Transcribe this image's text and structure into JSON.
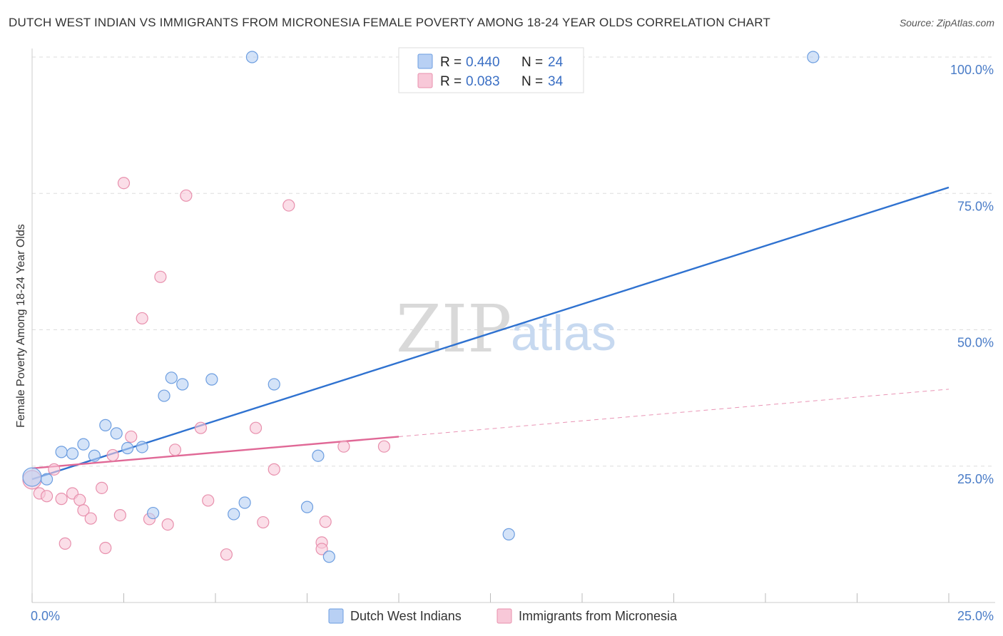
{
  "title": "DUTCH WEST INDIAN VS IMMIGRANTS FROM MICRONESIA FEMALE POVERTY AMONG 18-24 YEAR OLDS CORRELATION CHART",
  "source": "Source: ZipAtlas.com",
  "watermark": {
    "zip": "ZIP",
    "atlas": "atlas"
  },
  "legend": {
    "r_label": "R =",
    "n_label": "N =",
    "rows": [
      {
        "r": "0.440",
        "n": "24"
      },
      {
        "r": "0.083",
        "n": "34"
      }
    ]
  },
  "colors": {
    "blue_fill": "#b8d0f4",
    "blue_stroke": "#6d9ee0",
    "blue_line": "#2f72d0",
    "pink_fill": "#f8c8d8",
    "pink_stroke": "#e890ad",
    "pink_line": "#e06896",
    "tick_text": "#4a7cc7"
  },
  "chart_data": {
    "type": "scatter",
    "title": "DUTCH WEST INDIAN VS IMMIGRANTS FROM MICRONESIA FEMALE POVERTY AMONG 18-24 YEAR OLDS CORRELATION CHART",
    "xlabel": "",
    "ylabel": "Female Poverty Among 18-24 Year Olds",
    "xlim": [
      0,
      25
    ],
    "ylim": [
      0,
      100
    ],
    "x_tick_labels": [
      "0.0%",
      "25.0%"
    ],
    "y_tick_labels": [
      "25.0%",
      "50.0%",
      "75.0%",
      "100.0%"
    ],
    "y_tick_values": [
      25,
      50,
      75,
      100
    ],
    "grid": true,
    "legend_position": "bottom",
    "series": [
      {
        "name": "Dutch West Indians",
        "points": [
          [
            0.0,
            23.0
          ],
          [
            0.4,
            22.6
          ],
          [
            0.8,
            27.6
          ],
          [
            1.1,
            27.3
          ],
          [
            1.4,
            29.0
          ],
          [
            1.7,
            26.9
          ],
          [
            2.0,
            32.5
          ],
          [
            2.3,
            31.0
          ],
          [
            2.6,
            28.3
          ],
          [
            3.0,
            28.5
          ],
          [
            3.3,
            16.4
          ],
          [
            3.6,
            37.9
          ],
          [
            3.8,
            41.2
          ],
          [
            4.1,
            40.0
          ],
          [
            4.9,
            40.9
          ],
          [
            5.5,
            16.2
          ],
          [
            5.8,
            18.3
          ],
          [
            6.0,
            100.0
          ],
          [
            6.6,
            40.0
          ],
          [
            7.5,
            17.5
          ],
          [
            7.8,
            26.9
          ],
          [
            8.1,
            8.4
          ],
          [
            13.0,
            12.5
          ],
          [
            21.3,
            100.0
          ]
        ],
        "trend": {
          "x": [
            0.0,
            25.0
          ],
          "y": [
            22.6,
            76.1
          ]
        }
      },
      {
        "name": "Immigrants from Micronesia",
        "points": [
          [
            0.0,
            22.5
          ],
          [
            0.2,
            20.0
          ],
          [
            0.4,
            19.5
          ],
          [
            0.6,
            24.4
          ],
          [
            0.8,
            19.0
          ],
          [
            0.9,
            10.8
          ],
          [
            1.1,
            20.0
          ],
          [
            1.3,
            18.8
          ],
          [
            1.4,
            16.9
          ],
          [
            1.6,
            15.4
          ],
          [
            1.9,
            21.0
          ],
          [
            2.0,
            10.0
          ],
          [
            2.2,
            27.0
          ],
          [
            2.4,
            16.0
          ],
          [
            2.5,
            76.9
          ],
          [
            2.7,
            30.4
          ],
          [
            3.0,
            52.1
          ],
          [
            3.2,
            15.3
          ],
          [
            3.5,
            59.7
          ],
          [
            3.7,
            14.3
          ],
          [
            3.9,
            28.0
          ],
          [
            4.2,
            74.6
          ],
          [
            4.6,
            32.0
          ],
          [
            4.8,
            18.7
          ],
          [
            5.3,
            8.8
          ],
          [
            6.1,
            32.0
          ],
          [
            6.3,
            14.7
          ],
          [
            6.6,
            24.4
          ],
          [
            7.0,
            72.8
          ],
          [
            7.9,
            11.0
          ],
          [
            7.9,
            9.8
          ],
          [
            8.0,
            14.8
          ],
          [
            8.5,
            28.6
          ],
          [
            9.6,
            28.6
          ]
        ],
        "trend": {
          "x": [
            0.0,
            10.0
          ],
          "y": [
            24.6,
            30.4
          ]
        },
        "trend_extension": {
          "x": [
            10.0,
            25.0
          ],
          "y": [
            30.4,
            39.1
          ]
        }
      }
    ]
  }
}
